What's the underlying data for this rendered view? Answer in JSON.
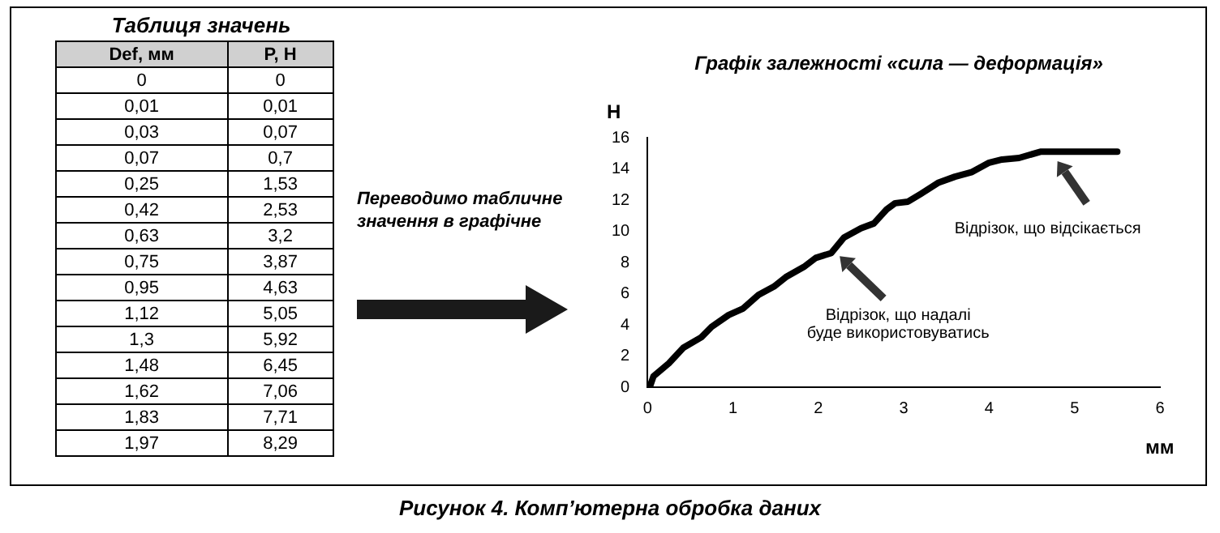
{
  "chart_data": [
    {
      "type": "other",
      "title": "Таблиця значень",
      "xlabel": "Def, мм",
      "ylabel": "P, Н",
      "annotations": [
        "0",
        "0",
        "0,01",
        "0,01",
        "0,03",
        "0,07",
        "0,07",
        "0,7",
        "0,25",
        "1,53",
        "0,42",
        "2,53",
        "0,63",
        "3,2",
        "0,75",
        "3,87",
        "0,95",
        "4,63",
        "1,12",
        "5,05",
        "1,3",
        "5,92",
        "1,48",
        "6,45",
        "1,62",
        "7,06",
        "1,83",
        "7,71",
        "1,97",
        "8,29"
      ]
    },
    {
      "type": "line",
      "title": "Графік залежності «сила — деформація»",
      "xlabel": "мм",
      "ylabel": "Н",
      "x": [
        0,
        0.01,
        0.03,
        0.07,
        0.25,
        0.42,
        0.63,
        0.75,
        0.95,
        1.12,
        1.3,
        1.48,
        1.62,
        1.83,
        1.97,
        2.15,
        2.3,
        2.5,
        2.65,
        2.8,
        2.9,
        3.05,
        3.2,
        3.4,
        3.6,
        3.8,
        4.0,
        4.15,
        4.35,
        4.6,
        5.0,
        5.5
      ],
      "series": [
        {
          "color": "#000000",
          "values": [
            0,
            0.01,
            0.07,
            0.7,
            1.53,
            2.53,
            3.2,
            3.87,
            4.63,
            5.05,
            5.92,
            6.45,
            7.06,
            7.71,
            8.29,
            8.6,
            9.6,
            10.2,
            10.5,
            11.4,
            11.8,
            11.9,
            12.4,
            13.1,
            13.5,
            13.8,
            14.4,
            14.6,
            14.7,
            15.1,
            15.1,
            15.1
          ]
        }
      ],
      "xlim": [
        0,
        6
      ],
      "ylim": [
        0,
        16
      ],
      "xticks": [
        0,
        1,
        2,
        3,
        4,
        5,
        6
      ],
      "yticks": [
        0,
        2,
        4,
        6,
        8,
        10,
        12,
        14,
        16
      ],
      "grid": false,
      "legend": false,
      "marker": "none",
      "line_style": "solid",
      "annotations": [
        {
          "text": "Відрізок, що надалі\nбуде використовуватись",
          "x": 2.25,
          "y": 8.4
        },
        {
          "text": "Відрізок, що відсікається",
          "x": 4.8,
          "y": 14.5
        },
        "Переводимо табличне значення в графічне",
        "Рисунок 4. Комп’ютерна обробка даних"
      ]
    }
  ]
}
